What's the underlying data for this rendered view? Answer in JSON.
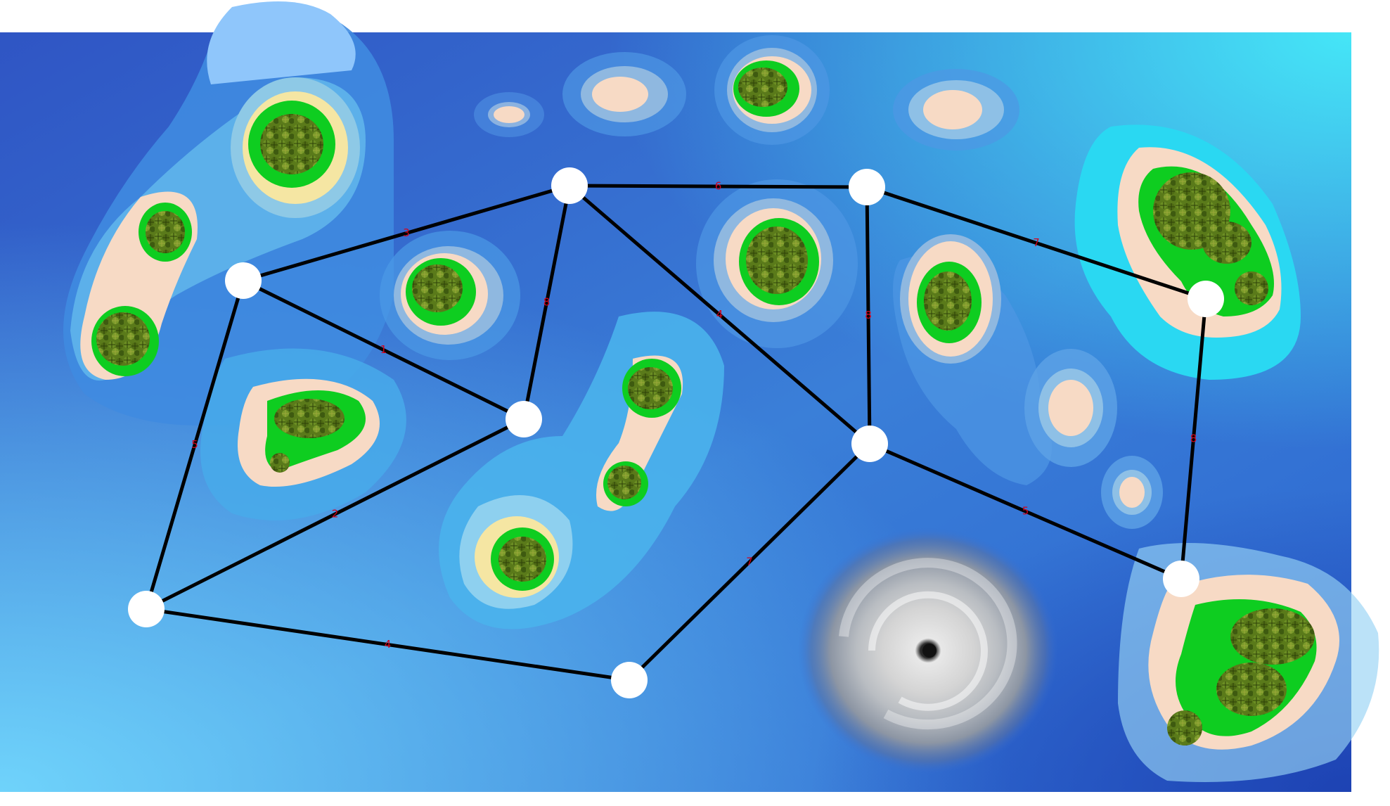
{
  "game": {
    "type": "island-route-graph",
    "colors": {
      "ocean_dark": "#2f55c4",
      "ocean_light": "#6fd3fb",
      "ocean_cyan": "#45e6f7",
      "shallow_blue": "#58b7ee",
      "sand": "#f7dac5",
      "beach_yellow": "#f5e6a3",
      "grass": "#0ecd20",
      "edge": "#000000",
      "edge_label": "#d4001a",
      "node": "#ffffff"
    },
    "hazard": {
      "icon": "hurricane-icon"
    },
    "nodes": [
      {
        "id": "n1"
      },
      {
        "id": "n2"
      },
      {
        "id": "n3"
      },
      {
        "id": "n4"
      },
      {
        "id": "n5"
      },
      {
        "id": "n6"
      },
      {
        "id": "n7"
      },
      {
        "id": "n8"
      },
      {
        "id": "n9"
      },
      {
        "id": "n10"
      }
    ],
    "edges": [
      {
        "from": "n1",
        "to": "n2",
        "weight": "6"
      },
      {
        "from": "n1",
        "to": "n3",
        "weight": "3"
      },
      {
        "from": "n1",
        "to": "n4",
        "weight": "8"
      },
      {
        "from": "n1",
        "to": "n5",
        "weight": "4"
      },
      {
        "from": "n2",
        "to": "n5",
        "weight": "8"
      },
      {
        "from": "n2",
        "to": "n6",
        "weight": "7"
      },
      {
        "from": "n3",
        "to": "n4",
        "weight": "1"
      },
      {
        "from": "n3",
        "to": "n7",
        "weight": "5"
      },
      {
        "from": "n4",
        "to": "n7",
        "weight": "2"
      },
      {
        "from": "n7",
        "to": "n8",
        "weight": "4"
      },
      {
        "from": "n8",
        "to": "n5",
        "weight": "7"
      },
      {
        "from": "n5",
        "to": "n9",
        "weight": "5"
      },
      {
        "from": "n6",
        "to": "n9",
        "weight": "8"
      }
    ]
  }
}
